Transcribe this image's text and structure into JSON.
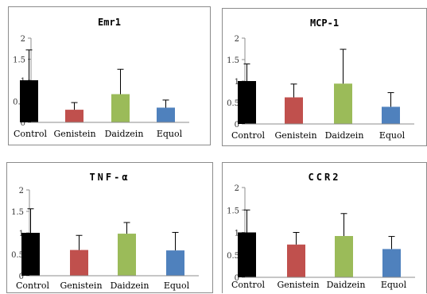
{
  "chart_data": [
    {
      "type": "bar",
      "title": "Emr1",
      "categories": [
        "Control",
        "Genistein",
        "Daidzein",
        "Equol"
      ],
      "values": [
        1.0,
        0.3,
        0.67,
        0.35
      ],
      "error": [
        0.72,
        0.17,
        0.59,
        0.18
      ],
      "ylim": [
        0,
        2
      ],
      "yticks": [
        "0",
        "0.5",
        "1",
        "1.5",
        "2"
      ],
      "xlabel": "",
      "ylabel": "",
      "grid": false,
      "colors": [
        "#000000",
        "#c0504d",
        "#9bbb59",
        "#4f81bd"
      ]
    },
    {
      "type": "bar",
      "title": "MCP-1",
      "categories": [
        "Control",
        "Genistein",
        "Daidzein",
        "Equol"
      ],
      "values": [
        1.0,
        0.62,
        0.94,
        0.4
      ],
      "error": [
        0.4,
        0.31,
        0.8,
        0.33
      ],
      "ylim": [
        0,
        2
      ],
      "yticks": [
        "0",
        "0.5",
        "1",
        "1.5",
        "2"
      ],
      "xlabel": "",
      "ylabel": "",
      "grid": false,
      "colors": [
        "#000000",
        "#c0504d",
        "#9bbb59",
        "#4f81bd"
      ]
    },
    {
      "type": "bar",
      "title": "TNF-α",
      "categories": [
        "Control",
        "Genistein",
        "Daidzein",
        "Equol"
      ],
      "values": [
        1.0,
        0.6,
        0.98,
        0.59
      ],
      "error": [
        0.56,
        0.34,
        0.26,
        0.42
      ],
      "ylim": [
        0,
        2
      ],
      "yticks": [
        "0",
        "0.5",
        "1",
        "1.5",
        "2"
      ],
      "xlabel": "",
      "ylabel": "",
      "grid": false,
      "colors": [
        "#000000",
        "#c0504d",
        "#9bbb59",
        "#4f81bd"
      ]
    },
    {
      "type": "bar",
      "title": "CCR2",
      "categories": [
        "Control",
        "Genistein",
        "Daidzein",
        "Equol"
      ],
      "values": [
        1.0,
        0.73,
        0.92,
        0.63
      ],
      "error": [
        0.5,
        0.27,
        0.5,
        0.28
      ],
      "ylim": [
        0,
        2
      ],
      "yticks": [
        "0",
        "0.5",
        "1",
        "1.5",
        "2"
      ],
      "xlabel": "",
      "ylabel": "",
      "grid": false,
      "colors": [
        "#000000",
        "#c0504d",
        "#9bbb59",
        "#4f81bd"
      ]
    }
  ]
}
